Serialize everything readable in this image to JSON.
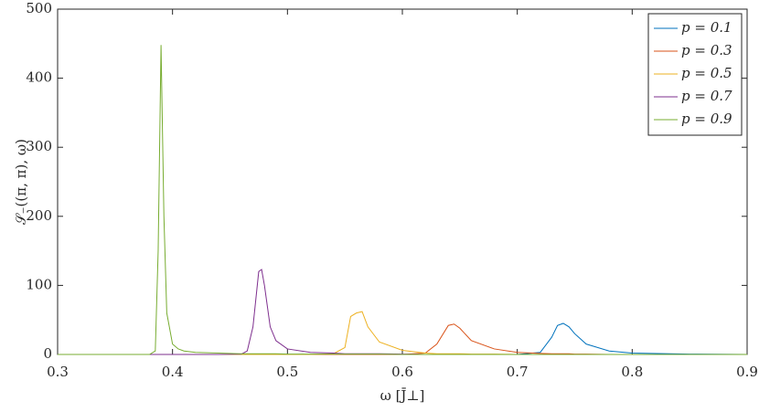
{
  "chart_data": {
    "type": "line",
    "x_label": "ω [J̄⊥]",
    "y_label": "𝒮₋((π, π), ω)",
    "x": [
      0.3,
      0.35,
      0.38,
      0.385,
      0.3875,
      0.39,
      0.3925,
      0.395,
      0.4,
      0.405,
      0.41,
      0.42,
      0.44,
      0.46,
      0.465,
      0.47,
      0.475,
      0.4775,
      0.48,
      0.485,
      0.49,
      0.5,
      0.52,
      0.54,
      0.55,
      0.555,
      0.56,
      0.565,
      0.57,
      0.58,
      0.6,
      0.62,
      0.63,
      0.64,
      0.645,
      0.65,
      0.66,
      0.68,
      0.7,
      0.72,
      0.73,
      0.735,
      0.74,
      0.745,
      0.75,
      0.76,
      0.78,
      0.8,
      0.85,
      0.9
    ],
    "series": [
      {
        "name": "p = 0.1",
        "color": "#0072bd",
        "values": [
          0,
          0,
          0,
          0,
          0,
          0,
          0,
          0,
          0,
          0,
          0,
          0,
          0,
          0,
          0,
          0,
          0,
          0,
          0,
          0,
          0,
          0,
          0,
          0,
          0,
          0,
          0,
          0,
          0,
          0,
          0,
          0,
          0,
          0,
          0,
          0,
          0,
          0,
          0,
          3,
          25,
          42,
          45,
          40,
          30,
          15,
          5,
          2,
          0.5,
          0
        ]
      },
      {
        "name": "p = 0.3",
        "color": "#d95319",
        "values": [
          0,
          0,
          0,
          0,
          0,
          0,
          0,
          0,
          0,
          0,
          0,
          0,
          0,
          0,
          0,
          0,
          0,
          0,
          0,
          0,
          0,
          0,
          0,
          0,
          0,
          0,
          0,
          0,
          0,
          0,
          0,
          2,
          15,
          42,
          44,
          38,
          20,
          8,
          3,
          1.5,
          1,
          1,
          1,
          1,
          0.5,
          0.5,
          0,
          0,
          0,
          0
        ]
      },
      {
        "name": "p = 0.5",
        "color": "#edb120",
        "values": [
          0,
          0,
          0,
          0,
          0,
          0,
          0,
          0,
          0,
          0,
          0,
          0,
          0,
          0,
          0,
          0,
          0,
          0,
          0,
          0,
          0,
          0,
          0,
          1,
          10,
          55,
          60,
          62,
          40,
          18,
          6,
          2,
          1,
          1,
          1,
          1,
          0.5,
          0.5,
          0,
          0,
          0,
          0,
          0,
          0,
          0,
          0,
          0,
          0,
          0,
          0
        ]
      },
      {
        "name": "p = 0.7",
        "color": "#7e2f8e",
        "values": [
          0,
          0,
          0,
          0,
          0,
          0,
          0,
          0,
          0,
          0,
          0,
          0,
          0,
          0.5,
          5,
          40,
          120,
          123,
          100,
          40,
          20,
          8,
          3,
          2,
          1,
          1,
          1,
          1,
          1,
          1,
          0.5,
          0,
          0,
          0,
          0,
          0,
          0,
          0,
          0,
          0,
          0,
          0,
          0,
          0,
          0,
          0,
          0,
          0,
          0,
          0
        ]
      },
      {
        "name": "p = 0.9",
        "color": "#77ac30",
        "values": [
          0,
          0,
          0,
          5,
          150,
          448,
          200,
          60,
          15,
          8,
          5,
          3,
          2,
          1,
          1,
          1,
          1,
          1,
          1,
          1,
          1,
          0.5,
          0.5,
          0.5,
          0.5,
          0.5,
          0.5,
          0.5,
          0.5,
          0.5,
          0,
          0,
          0,
          0,
          0,
          0,
          0,
          0,
          0,
          0,
          0,
          0,
          0,
          0,
          0,
          0,
          0,
          0,
          0,
          0
        ]
      }
    ],
    "xlim": [
      0.3,
      0.9
    ],
    "xticks": [
      0.3,
      0.4,
      0.5,
      0.6,
      0.7,
      0.8,
      0.9
    ],
    "ylim": [
      0,
      500
    ],
    "yticks": [
      0,
      100,
      200,
      300,
      400,
      500
    ],
    "grid": false,
    "legend": "top-right"
  }
}
